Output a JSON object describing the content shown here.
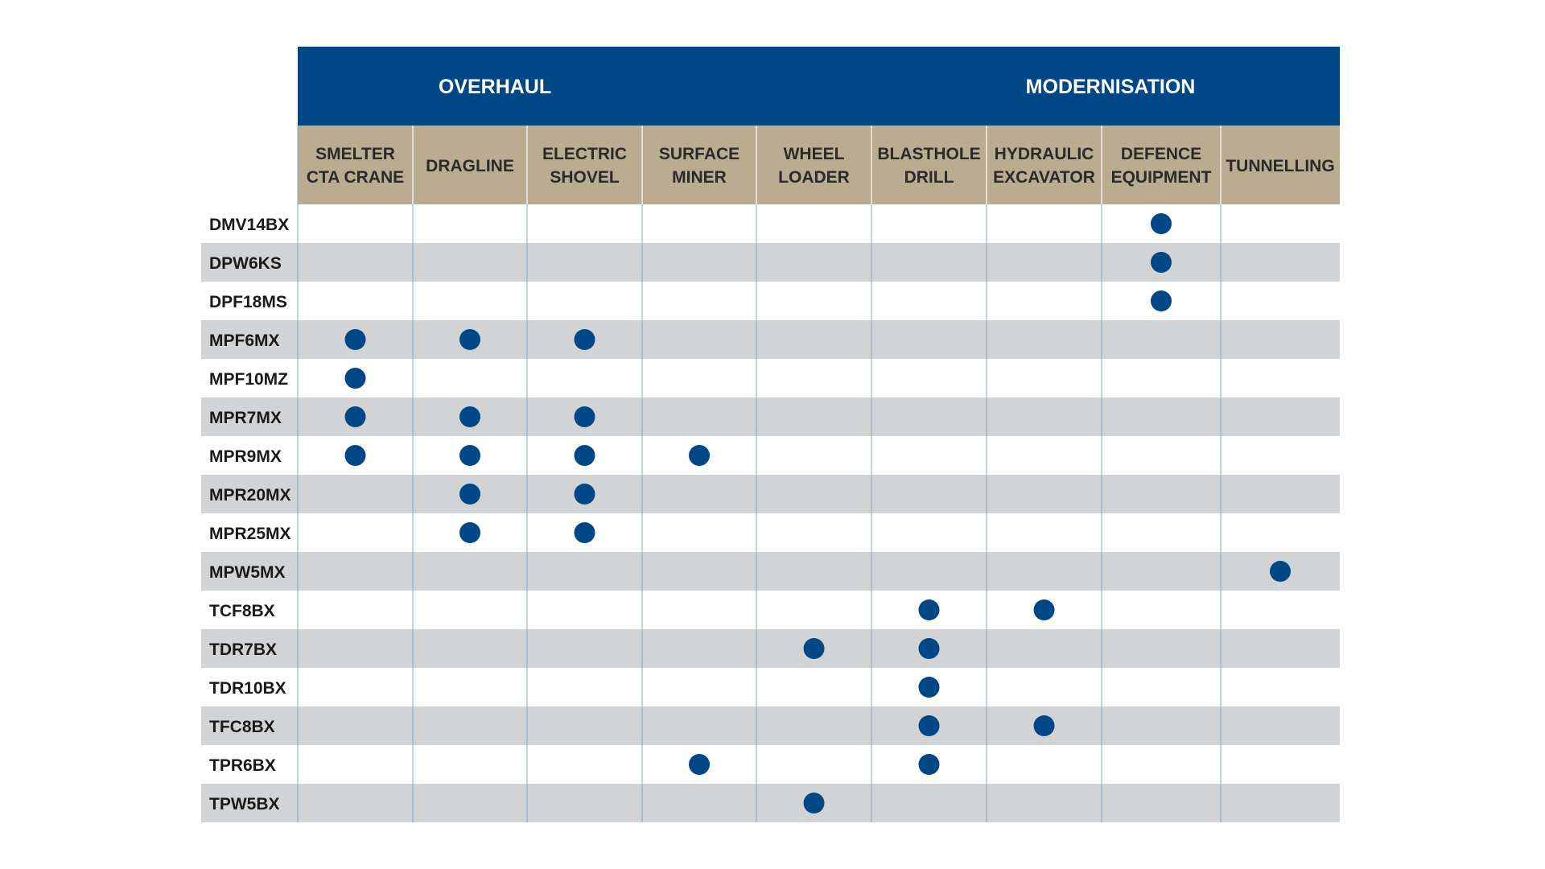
{
  "chart_data": {
    "type": "table",
    "groups": [
      "OVERHAUL",
      "MODERNISATION"
    ],
    "columns": [
      {
        "line1": "SMELTER",
        "line2": "CTA CRANE"
      },
      {
        "line1": "DRAGLINE",
        "line2": ""
      },
      {
        "line1": "ELECTRIC",
        "line2": "SHOVEL"
      },
      {
        "line1": "SURFACE",
        "line2": "MINER"
      },
      {
        "line1": "WHEEL",
        "line2": "LOADER"
      },
      {
        "line1": "BLASTHOLE",
        "line2": "DRILL"
      },
      {
        "line1": "HYDRAULIC",
        "line2": "EXCAVATOR"
      },
      {
        "line1": "DEFENCE",
        "line2": "EQUIPMENT"
      },
      {
        "line1": "TUNNELLING",
        "line2": ""
      }
    ],
    "rows": [
      {
        "label": "DMV14BX",
        "marks": [
          0,
          0,
          0,
          0,
          0,
          0,
          0,
          1,
          0
        ]
      },
      {
        "label": "DPW6KS",
        "marks": [
          0,
          0,
          0,
          0,
          0,
          0,
          0,
          1,
          0
        ]
      },
      {
        "label": "DPF18MS",
        "marks": [
          0,
          0,
          0,
          0,
          0,
          0,
          0,
          1,
          0
        ]
      },
      {
        "label": "MPF6MX",
        "marks": [
          1,
          1,
          1,
          0,
          0,
          0,
          0,
          0,
          0
        ]
      },
      {
        "label": "MPF10MZ",
        "marks": [
          1,
          0,
          0,
          0,
          0,
          0,
          0,
          0,
          0
        ]
      },
      {
        "label": "MPR7MX",
        "marks": [
          1,
          1,
          1,
          0,
          0,
          0,
          0,
          0,
          0
        ]
      },
      {
        "label": "MPR9MX",
        "marks": [
          1,
          1,
          1,
          1,
          0,
          0,
          0,
          0,
          0
        ]
      },
      {
        "label": "MPR20MX",
        "marks": [
          0,
          1,
          1,
          0,
          0,
          0,
          0,
          0,
          0
        ]
      },
      {
        "label": "MPR25MX",
        "marks": [
          0,
          1,
          1,
          0,
          0,
          0,
          0,
          0,
          0
        ]
      },
      {
        "label": "MPW5MX",
        "marks": [
          0,
          0,
          0,
          0,
          0,
          0,
          0,
          0,
          1
        ]
      },
      {
        "label": "TCF8BX",
        "marks": [
          0,
          0,
          0,
          0,
          0,
          1,
          1,
          0,
          0
        ]
      },
      {
        "label": "TDR7BX",
        "marks": [
          0,
          0,
          0,
          0,
          1,
          1,
          0,
          0,
          0
        ]
      },
      {
        "label": "TDR10BX",
        "marks": [
          0,
          0,
          0,
          0,
          0,
          1,
          0,
          0,
          0
        ]
      },
      {
        "label": "TFC8BX",
        "marks": [
          0,
          0,
          0,
          0,
          0,
          1,
          1,
          0,
          0
        ]
      },
      {
        "label": "TPR6BX",
        "marks": [
          0,
          0,
          0,
          1,
          0,
          1,
          0,
          0,
          0
        ]
      },
      {
        "label": "TPW5BX",
        "marks": [
          0,
          0,
          0,
          0,
          1,
          0,
          0,
          0,
          0
        ]
      }
    ],
    "colors": {
      "header_band": "#004785",
      "column_header": "#b9ac91",
      "row_shade": "#d1d3d4",
      "dot": "#004785",
      "divider": "#86a4c4"
    }
  }
}
